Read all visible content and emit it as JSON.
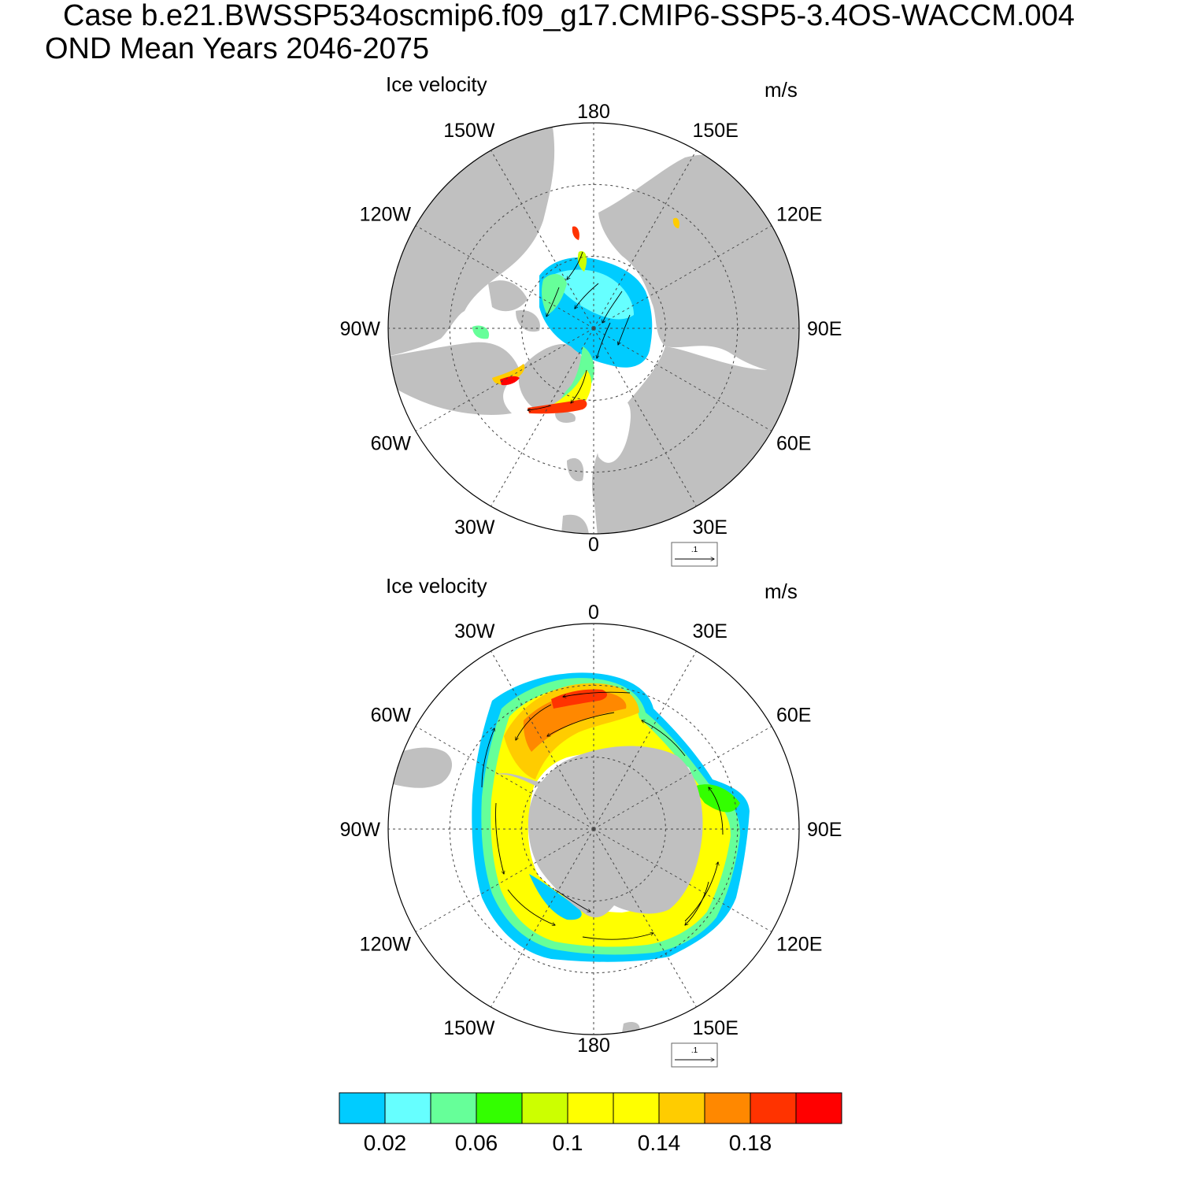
{
  "header": {
    "case_line": "Case b.e21.BWSSP534oscmip6.f09_g17.CMIP6-SSP5-3.4OS-WACCM.004",
    "period_line": "OND Mean   Years 2046-2075"
  },
  "panels": [
    {
      "title": "Ice velocity",
      "units": "m/s",
      "hemisphere": "north",
      "longitude_labels": [
        "180",
        "150E",
        "120E",
        "90E",
        "60E",
        "30E",
        "0",
        "30W",
        "60W",
        "90W",
        "120W",
        "150W"
      ],
      "reference_vector": ".1"
    },
    {
      "title": "Ice velocity",
      "units": "m/s",
      "hemisphere": "south",
      "longitude_labels": [
        "0",
        "30E",
        "60E",
        "90E",
        "120E",
        "150E",
        "180",
        "150W",
        "120W",
        "90W",
        "60W",
        "30W"
      ],
      "reference_vector": ".1"
    }
  ],
  "colorbar": {
    "colors": [
      "#00ccff",
      "#66ffff",
      "#66ff99",
      "#33ff00",
      "#ccff00",
      "#ffff00",
      "#ffff00",
      "#ffcc00",
      "#ff8800",
      "#ff3300",
      "#ff0000"
    ],
    "tick_labels": [
      "0.02",
      "0.06",
      "0.1",
      "0.14",
      "0.18"
    ],
    "tick_positions": [
      1,
      3,
      5,
      7,
      9
    ]
  },
  "colors": {
    "land": "#c0c0c0",
    "ocean": "#ffffff",
    "grid": "#333333"
  }
}
